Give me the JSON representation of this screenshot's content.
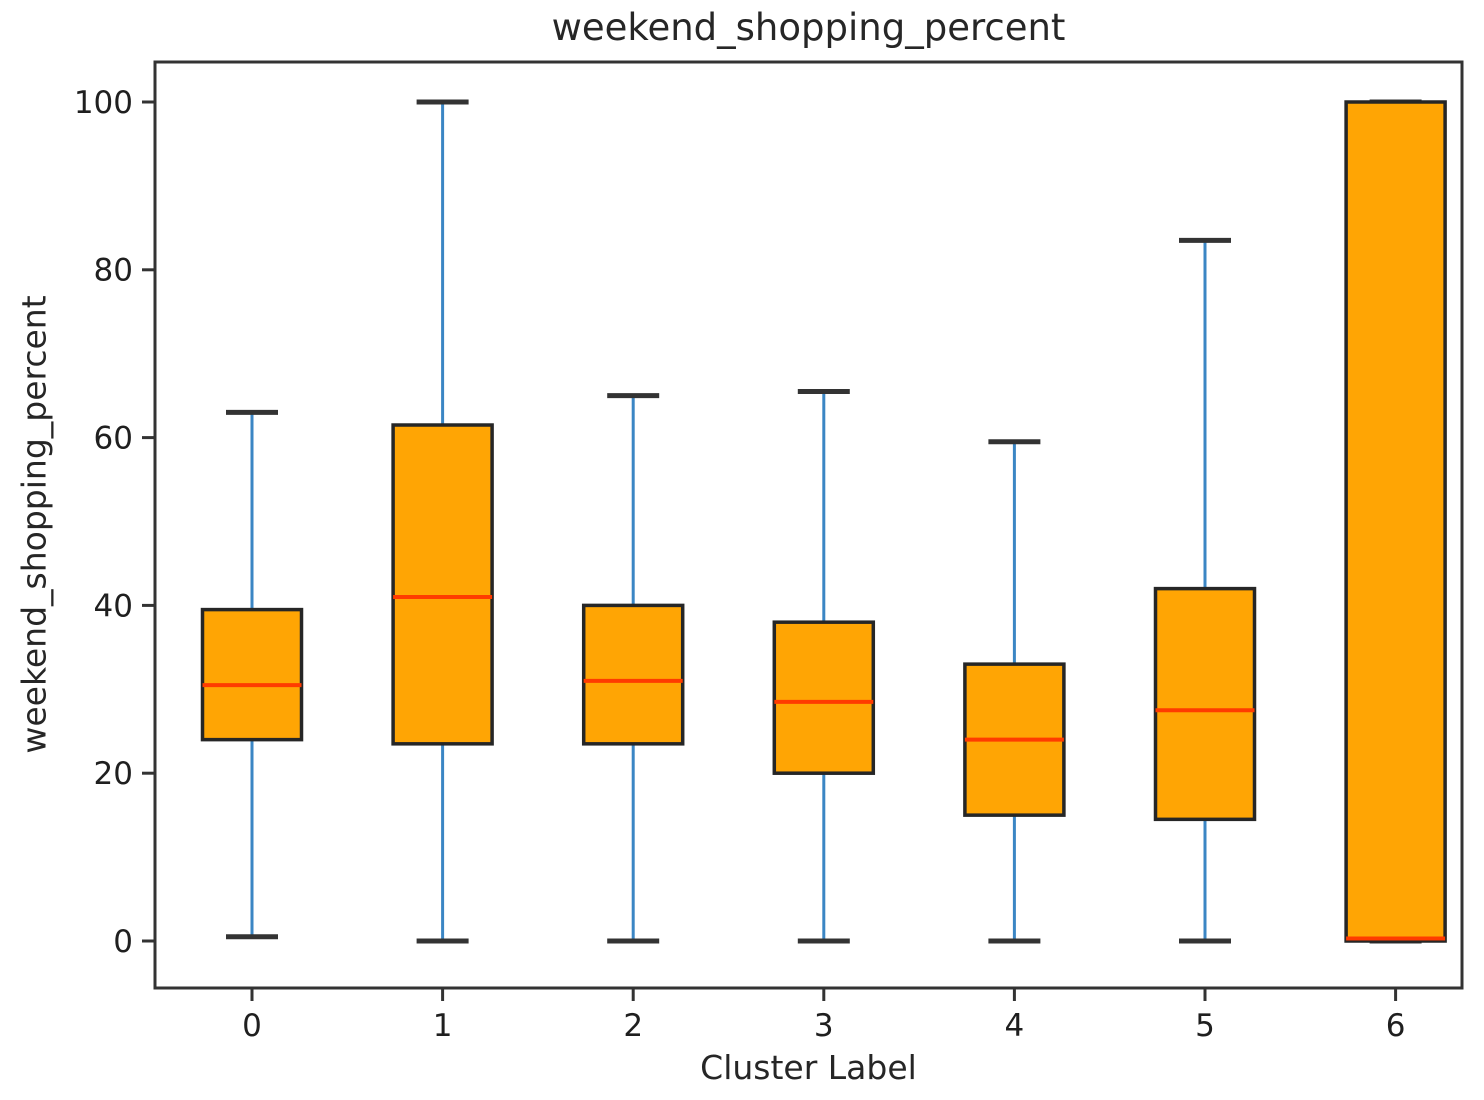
{
  "chart_data": {
    "type": "boxplot",
    "title": "weekend_shopping_percent",
    "xlabel": "Cluster Label",
    "ylabel": "weekend_shopping_percent",
    "categories": [
      "0",
      "1",
      "2",
      "3",
      "4",
      "5",
      "6"
    ],
    "y_ticks": [
      0,
      20,
      40,
      60,
      80,
      100
    ],
    "ylim": [
      0,
      100
    ],
    "grid": false,
    "legend": "none",
    "series": [
      {
        "cluster": "0",
        "whisker_low": 0.5,
        "q1": 24,
        "median": 30.5,
        "q3": 39.5,
        "whisker_high": 63
      },
      {
        "cluster": "1",
        "whisker_low": 0,
        "q1": 23.5,
        "median": 41,
        "q3": 61.5,
        "whisker_high": 100
      },
      {
        "cluster": "2",
        "whisker_low": 0,
        "q1": 23.5,
        "median": 31,
        "q3": 40,
        "whisker_high": 65
      },
      {
        "cluster": "3",
        "whisker_low": 0,
        "q1": 20,
        "median": 28.5,
        "q3": 38,
        "whisker_high": 65.5
      },
      {
        "cluster": "4",
        "whisker_low": 0,
        "q1": 15,
        "median": 24,
        "q3": 33,
        "whisker_high": 59.5
      },
      {
        "cluster": "5",
        "whisker_low": 0,
        "q1": 14.5,
        "median": 27.5,
        "q3": 42,
        "whisker_high": 83.5
      },
      {
        "cluster": "6",
        "whisker_low": 0,
        "q1": 0,
        "median": 0.3,
        "q3": 100,
        "whisker_high": 100
      }
    ],
    "colors": {
      "box_fill": "#FFA504",
      "box_edge": "#262626",
      "median": "#FF3B00",
      "whisker": "#3B86C4",
      "cap": "#333333",
      "spine": "#333333",
      "text": "#1F1F1F",
      "background": "#FFFFFF"
    }
  }
}
